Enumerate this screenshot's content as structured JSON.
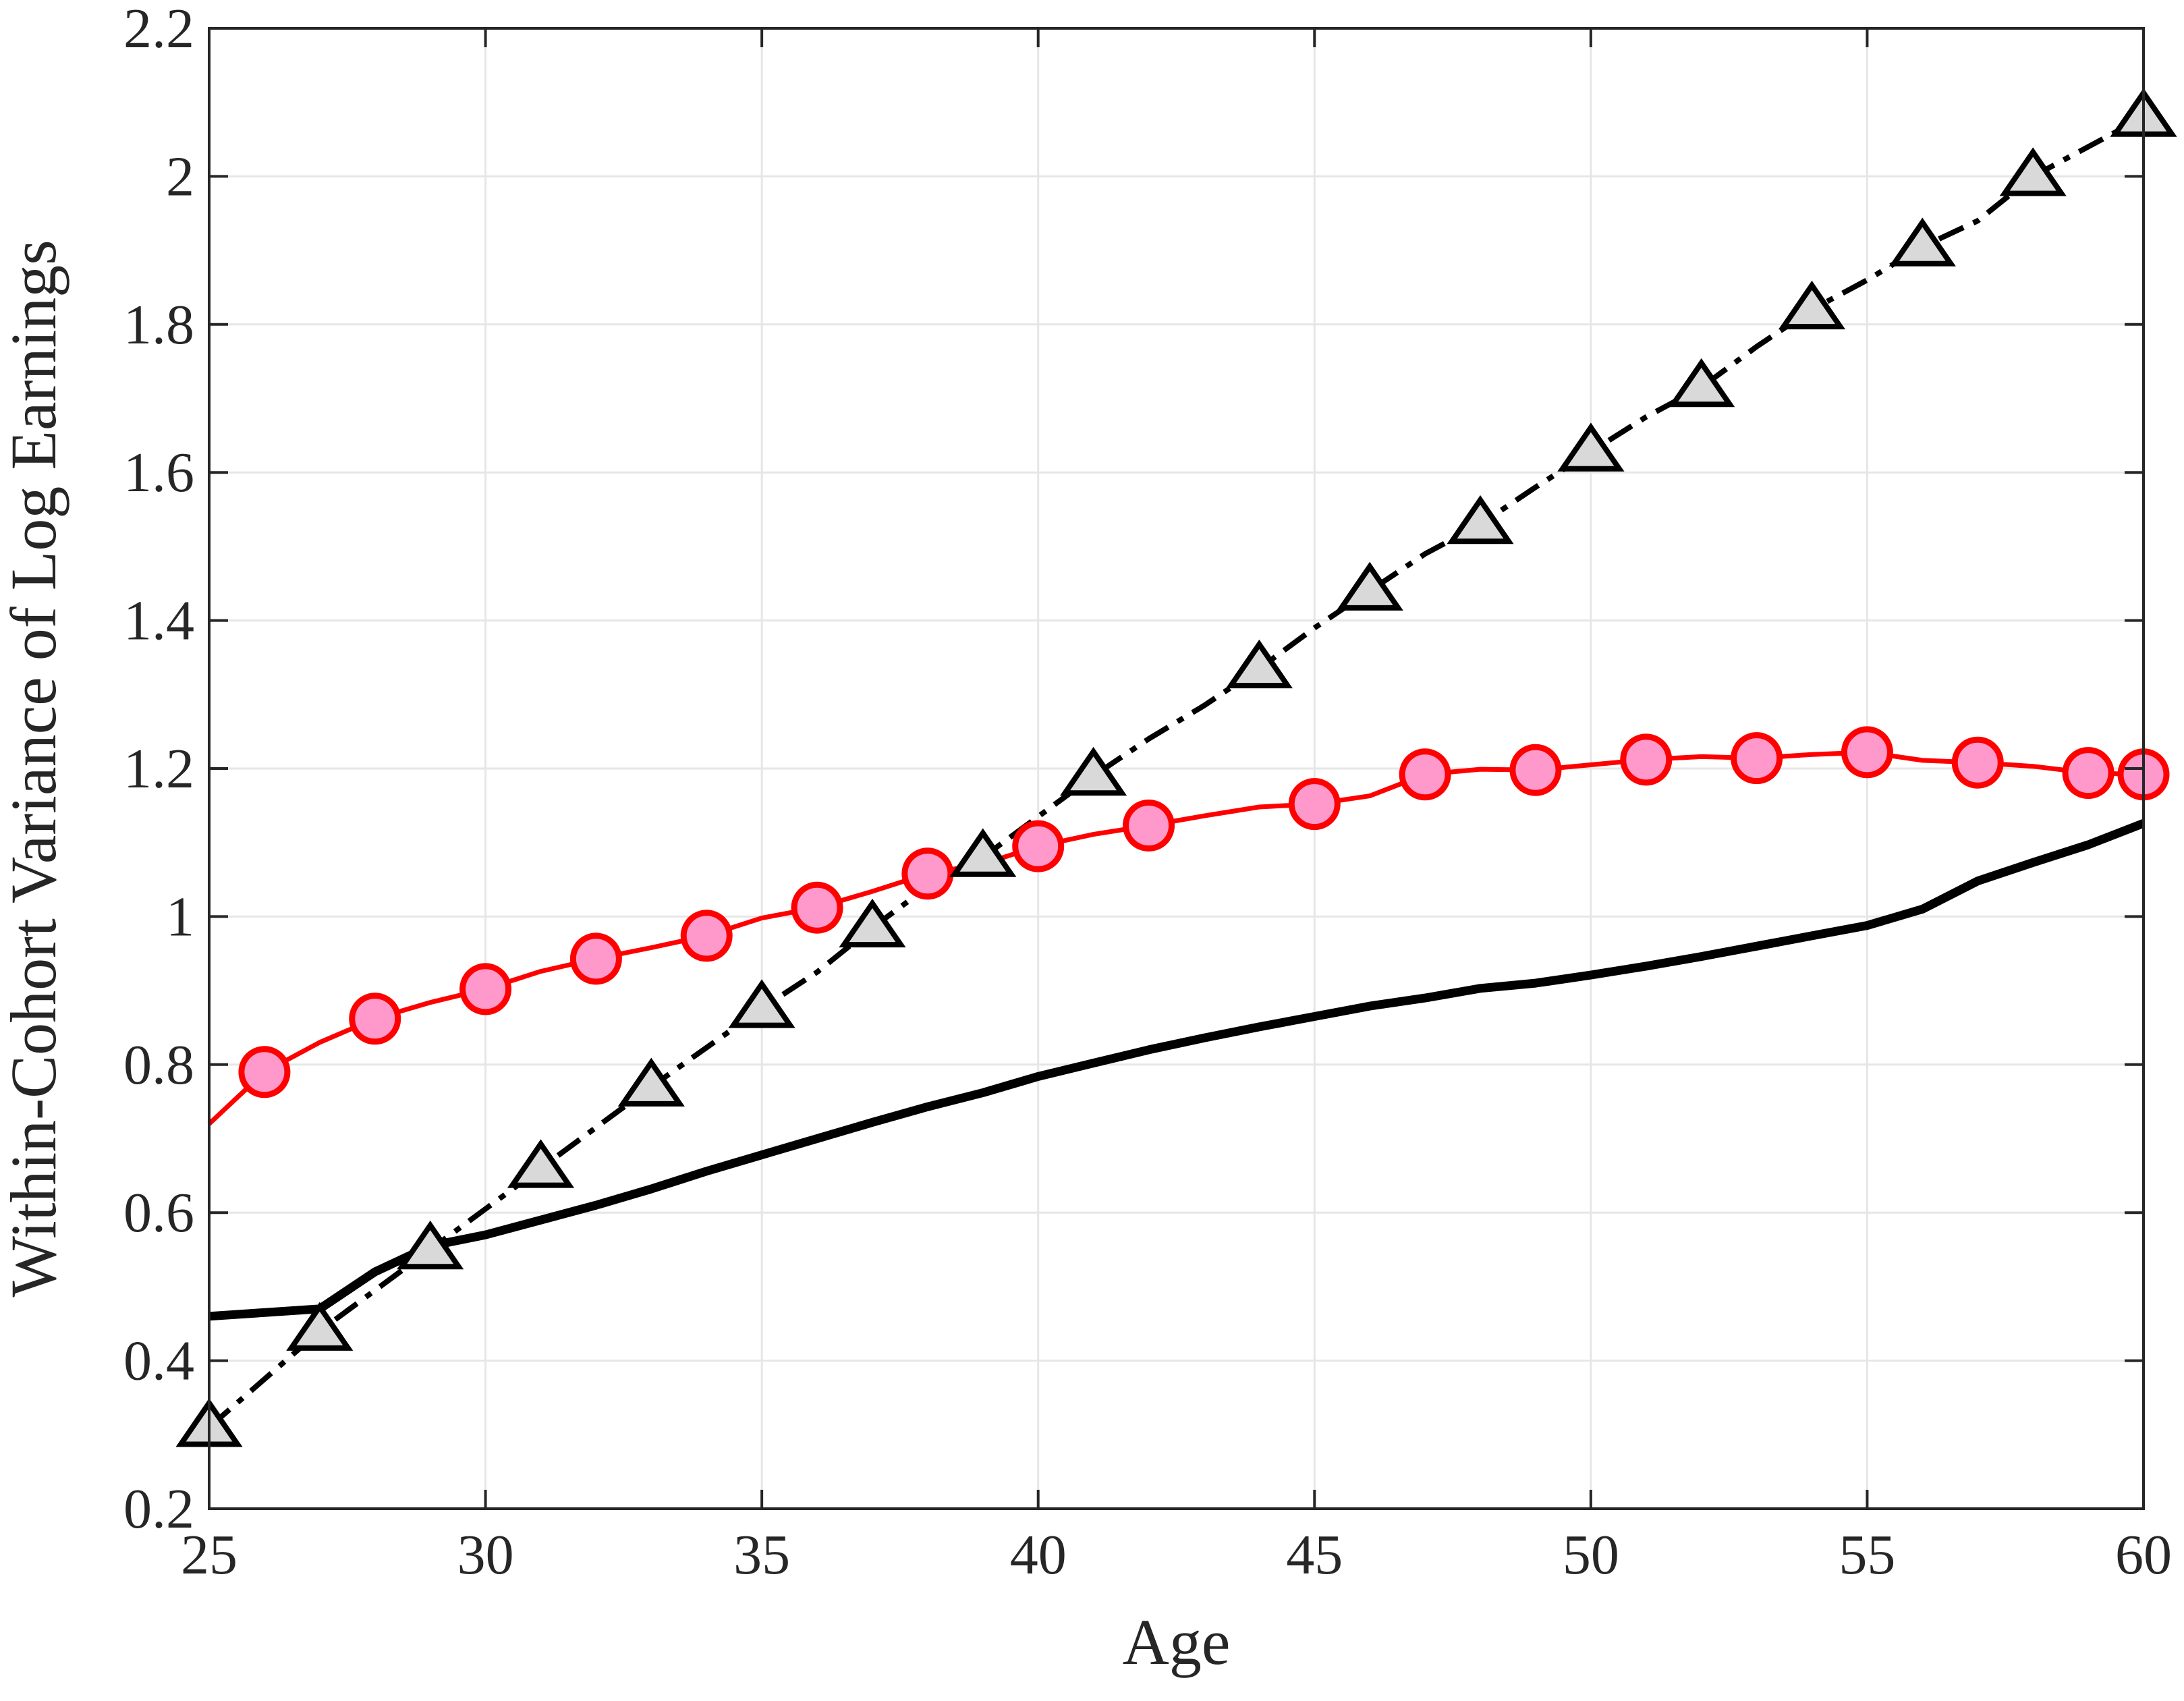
{
  "chart_data": {
    "type": "line",
    "title": "",
    "xlabel": "Age",
    "ylabel": "Within-Cohort Variance of Log Earnings",
    "xlim": [
      25,
      60
    ],
    "ylim": [
      0.2,
      2.2
    ],
    "xticks": [
      25,
      30,
      35,
      40,
      45,
      50,
      55,
      60
    ],
    "xtick_labels": [
      "25",
      "30",
      "35",
      "40",
      "45",
      "50",
      "55",
      "60"
    ],
    "yticks": [
      0.2,
      0.4,
      0.6,
      0.8,
      1.0,
      1.2,
      1.4,
      1.6,
      1.8,
      2.0,
      2.2
    ],
    "ytick_labels": [
      "0.2",
      "0.4",
      "0.6",
      "0.8",
      "1",
      "1.2",
      "1.4",
      "1.6",
      "1.8",
      "2",
      "2.2"
    ],
    "grid": true,
    "legend": "none",
    "series": [
      {
        "style": "solid-black-thick",
        "color": "#000000",
        "marker": "none",
        "x": [
          25,
          26,
          27,
          28,
          29,
          30,
          31,
          32,
          33,
          34,
          35,
          36,
          37,
          38,
          39,
          40,
          41,
          42,
          43,
          44,
          45,
          46,
          47,
          48,
          49,
          50,
          51,
          52,
          53,
          54,
          55,
          56,
          57,
          58,
          59,
          60
        ],
        "y": [
          0.46,
          0.465,
          0.47,
          0.52,
          0.555,
          0.57,
          0.59,
          0.61,
          0.632,
          0.656,
          0.678,
          0.7,
          0.722,
          0.743,
          0.762,
          0.784,
          0.802,
          0.82,
          0.836,
          0.851,
          0.865,
          0.879,
          0.89,
          0.903,
          0.91,
          0.921,
          0.933,
          0.946,
          0.96,
          0.974,
          0.988,
          1.01,
          1.048,
          1.073,
          1.097,
          1.126
        ]
      },
      {
        "style": "solid-red",
        "color": "#ff0000",
        "marker": "circle",
        "marker_fill": "#ff99cc",
        "x": [
          25,
          26,
          27,
          28,
          29,
          30,
          31,
          32,
          33,
          34,
          35,
          36,
          37,
          38,
          39,
          40,
          41,
          42,
          43,
          44,
          45,
          46,
          47,
          48,
          49,
          50,
          51,
          52,
          53,
          54,
          55,
          56,
          57,
          58,
          59,
          60
        ],
        "y": [
          0.72,
          0.79,
          0.83,
          0.862,
          0.884,
          0.902,
          0.926,
          0.943,
          0.958,
          0.974,
          0.998,
          1.012,
          1.034,
          1.058,
          1.071,
          1.095,
          1.111,
          1.123,
          1.136,
          1.148,
          1.152,
          1.163,
          1.192,
          1.199,
          1.198,
          1.205,
          1.212,
          1.216,
          1.214,
          1.219,
          1.222,
          1.211,
          1.208,
          1.203,
          1.194,
          1.192
        ],
        "marker_x": [
          26,
          28,
          30,
          32,
          34,
          36,
          38,
          40,
          42,
          45,
          47,
          49,
          51,
          53,
          55,
          57,
          59,
          60
        ]
      },
      {
        "style": "dash-dot-black",
        "color": "#000000",
        "marker": "triangle",
        "marker_fill": "#d9d9d9",
        "x": [
          25,
          26,
          27,
          28,
          29,
          30,
          31,
          32,
          33,
          34,
          35,
          36,
          37,
          38,
          39,
          40,
          41,
          42,
          43,
          44,
          45,
          46,
          47,
          48,
          49,
          50,
          51,
          52,
          53,
          54,
          55,
          56,
          57,
          58,
          59,
          60
        ],
        "y": [
          0.31,
          0.375,
          0.44,
          0.495,
          0.55,
          0.605,
          0.66,
          0.715,
          0.77,
          0.823,
          0.876,
          0.925,
          0.985,
          1.04,
          1.08,
          1.135,
          1.19,
          1.24,
          1.285,
          1.335,
          1.39,
          1.44,
          1.49,
          1.53,
          1.58,
          1.628,
          1.675,
          1.715,
          1.77,
          1.82,
          1.86,
          1.905,
          1.94,
          2.0,
          2.04,
          2.08
        ],
        "marker_x": [
          25,
          27,
          29,
          31,
          33,
          35,
          37,
          39,
          41,
          44,
          46,
          48,
          50,
          52,
          54,
          56,
          58,
          60
        ]
      }
    ]
  }
}
